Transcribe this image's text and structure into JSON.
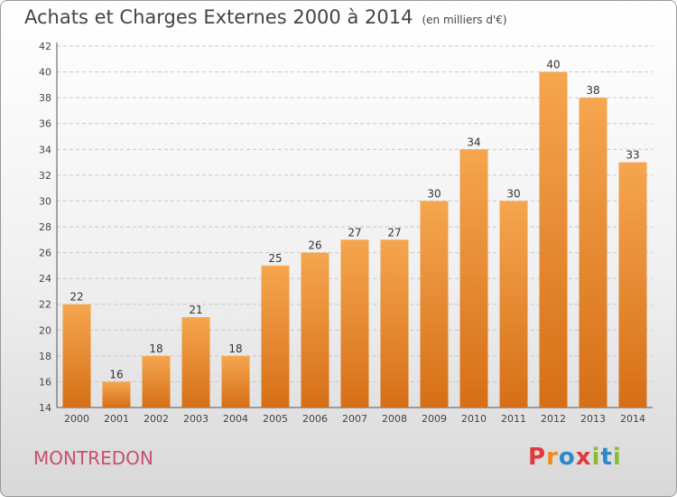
{
  "header": {
    "title": "Achats et Charges Externes 2000 à 2014",
    "unit": "(en milliers d'€)"
  },
  "footer": {
    "commune": "MONTREDON",
    "logo_text": "Proxiti"
  },
  "colors": {
    "bar_light": "#f5a64e",
    "bar_dark": "#d66f17",
    "commune": "#c8506f",
    "logo_letters": [
      "#e0393e",
      "#f08a1c",
      "#2c88c9",
      "#e0393e",
      "#8dbb35",
      "#2c88c9",
      "#8dbb35"
    ]
  },
  "chart_data": {
    "type": "bar",
    "title": "Achats et Charges Externes 2000 à 2014",
    "subtitle": "(en milliers d'€)",
    "categories": [
      "2000",
      "2001",
      "2002",
      "2003",
      "2004",
      "2005",
      "2006",
      "2007",
      "2008",
      "2009",
      "2010",
      "2011",
      "2012",
      "2013",
      "2014"
    ],
    "values": [
      22,
      16,
      18,
      21,
      18,
      25,
      26,
      27,
      27,
      30,
      34,
      30,
      40,
      38,
      33
    ],
    "ylim": [
      14,
      42
    ],
    "yticks": [
      14,
      16,
      18,
      20,
      22,
      24,
      26,
      28,
      30,
      32,
      34,
      36,
      38,
      40,
      42
    ],
    "grid": true,
    "data_labels": true
  }
}
